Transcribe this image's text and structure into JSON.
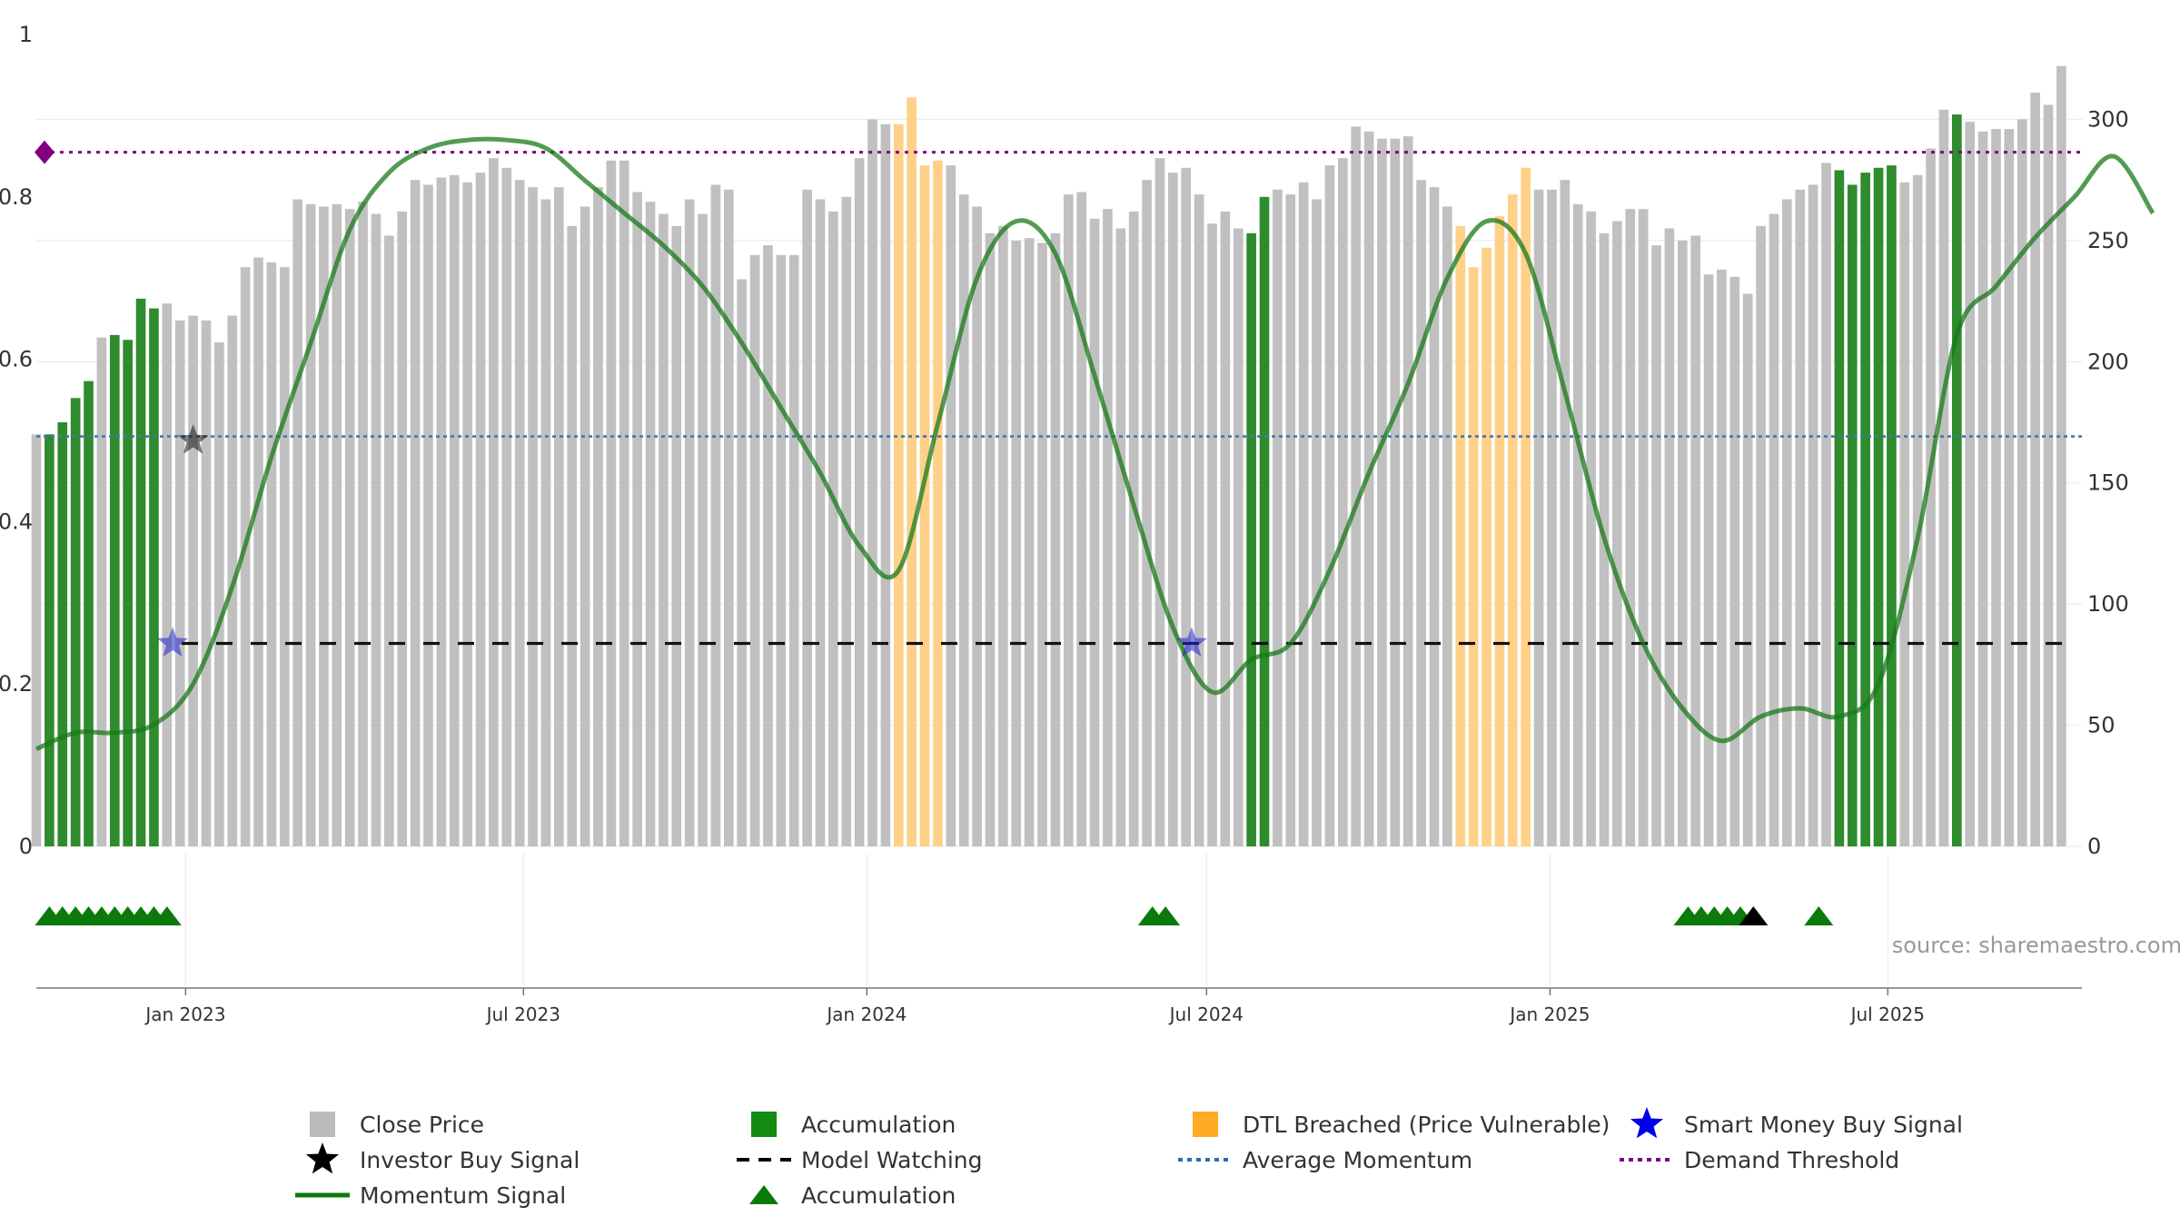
{
  "chart_data": {
    "type": "bar",
    "source": "source: sharemaestro.com",
    "x_ticks": [
      "Jan 2023",
      "Jul 2023",
      "Jan 2024",
      "Jul 2024",
      "Jan 2025",
      "Jul 2025"
    ],
    "x_tick_dates": [
      "2023-01-01",
      "2023-07-01",
      "2024-01-01",
      "2024-07-01",
      "2025-01-01",
      "2025-07-01"
    ],
    "x_range": [
      "2022-10-13",
      "2025-10-13"
    ],
    "left_axis": {
      "ylim": [
        0,
        1
      ],
      "ticks": [
        "0",
        "0.2",
        "0.4",
        "0.6",
        "0.8",
        "1"
      ]
    },
    "right_axis": {
      "ylim": [
        0,
        335
      ],
      "ticks": [
        "0",
        "50",
        "100",
        "150",
        "200",
        "250",
        "300"
      ]
    },
    "grid": true,
    "colors": {
      "close": "#c0c0c0",
      "accumulation": "#2e8b2e",
      "dtl": "#ffd088",
      "momentum": "#1a7a1a",
      "average": "#4477aa",
      "threshold": "#800080",
      "smart_money": "#2222cc",
      "investor": "#111111",
      "triangle": "#0a7a0a"
    },
    "close_price": {
      "name": "Close Price",
      "start_date": "2022-10-13",
      "interval_days": 7,
      "status_codes": "g = grey (normal), a = green (accumulation), d = amber (DTL breached)",
      "values": [
        170,
        170,
        175,
        185,
        192,
        210,
        211,
        209,
        226,
        222,
        224,
        217,
        219,
        217,
        208,
        219,
        239,
        243,
        241,
        239,
        267,
        265,
        264,
        265,
        263,
        266,
        261,
        252,
        262,
        275,
        273,
        276,
        277,
        274,
        278,
        284,
        280,
        275,
        272,
        267,
        272,
        256,
        264,
        272,
        283,
        283,
        270,
        266,
        261,
        256,
        267,
        261,
        273,
        271,
        234,
        244,
        248,
        244,
        244,
        271,
        267,
        262,
        268,
        284,
        300,
        298,
        298,
        309,
        281,
        283,
        281,
        269,
        264,
        253,
        256,
        250,
        251,
        249,
        253,
        269,
        270,
        259,
        263,
        255,
        262,
        275,
        284,
        278,
        280,
        269,
        257,
        262,
        255,
        253,
        268,
        271,
        269,
        274,
        267,
        281,
        284,
        297,
        295,
        292,
        292,
        293,
        275,
        272,
        264,
        256,
        239,
        247,
        260,
        269,
        280,
        271,
        271,
        275,
        265,
        262,
        253,
        258,
        263,
        263,
        248,
        255,
        250,
        252,
        236,
        238,
        235,
        228,
        256,
        261,
        267,
        271,
        273,
        282,
        279,
        273,
        278,
        280,
        281,
        274,
        277,
        288,
        304,
        302,
        299,
        295,
        296,
        296,
        300,
        311,
        306,
        322
      ],
      "status": "gaaaagaaaaggggggggggggggggggggggggggggggggggggggggggggggggggggggggddddgggggggggggggggggggggggaaggggggggggggggddddddgggggggggggggggggggggggaaaaaggggaggggggggggggggggdddddddddd"
    },
    "momentum": {
      "name": "Momentum Signal",
      "points": [
        [
          0,
          0.12
        ],
        [
          3,
          0.14
        ],
        [
          6,
          0.14
        ],
        [
          9,
          0.15
        ],
        [
          12,
          0.2
        ],
        [
          15,
          0.32
        ],
        [
          18,
          0.48
        ],
        [
          21,
          0.62
        ],
        [
          24,
          0.76
        ],
        [
          27,
          0.83
        ],
        [
          30,
          0.86
        ],
        [
          33,
          0.87
        ],
        [
          36,
          0.87
        ],
        [
          39,
          0.86
        ],
        [
          42,
          0.82
        ],
        [
          45,
          0.78
        ],
        [
          48,
          0.74
        ],
        [
          51,
          0.69
        ],
        [
          54,
          0.62
        ],
        [
          57,
          0.54
        ],
        [
          60,
          0.46
        ],
        [
          63,
          0.37
        ],
        [
          66,
          0.34
        ],
        [
          69,
          0.52
        ],
        [
          72,
          0.7
        ],
        [
          75,
          0.77
        ],
        [
          78,
          0.73
        ],
        [
          81,
          0.58
        ],
        [
          84,
          0.42
        ],
        [
          87,
          0.27
        ],
        [
          90,
          0.19
        ],
        [
          93,
          0.23
        ],
        [
          96,
          0.25
        ],
        [
          99,
          0.34
        ],
        [
          102,
          0.46
        ],
        [
          105,
          0.57
        ],
        [
          108,
          0.7
        ],
        [
          111,
          0.77
        ],
        [
          114,
          0.73
        ],
        [
          117,
          0.56
        ],
        [
          120,
          0.38
        ],
        [
          123,
          0.25
        ],
        [
          126,
          0.17
        ],
        [
          129,
          0.13
        ],
        [
          132,
          0.16
        ],
        [
          135,
          0.17
        ],
        [
          138,
          0.16
        ],
        [
          141,
          0.2
        ],
        [
          144,
          0.38
        ],
        [
          147,
          0.63
        ],
        [
          150,
          0.69
        ],
        [
          153,
          0.75
        ],
        [
          156,
          0.8
        ],
        [
          159,
          0.85
        ],
        [
          162,
          0.78
        ]
      ]
    },
    "model_watching": {
      "name": "Model Watching",
      "value": 0.25
    },
    "average_momentum": {
      "name": "Average Momentum",
      "value": 0.505
    },
    "demand_threshold": {
      "name": "Demand Threshold",
      "value": 0.855
    },
    "smart_money_signals": [
      {
        "date": "2022-12-25",
        "value": 0.25
      },
      {
        "date": "2024-06-23",
        "value": 0.25
      }
    ],
    "investor_signals": [
      {
        "date": "2023-01-05",
        "value": 0.5
      }
    ],
    "accumulation_triangles": [
      "2022-10-20",
      "2022-10-27",
      "2022-11-03",
      "2022-11-10",
      "2022-11-17",
      "2022-11-24",
      "2022-12-01",
      "2022-12-08",
      "2022-12-15",
      "2022-12-22",
      "2024-06-02",
      "2024-06-09",
      "2025-03-16",
      "2025-03-23",
      "2025-03-30",
      "2025-04-06",
      "2025-04-13",
      "2025-05-25"
    ],
    "investor_triangles": [
      "2025-04-20"
    ],
    "legend": [
      {
        "label": "Close Price",
        "symbol": "square",
        "color": "#bbbbbb"
      },
      {
        "label": "Accumulation",
        "symbol": "square",
        "color": "#138a13"
      },
      {
        "label": "DTL Breached (Price Vulnerable)",
        "symbol": "square",
        "color": "#ffab24"
      },
      {
        "label": "Smart Money Buy Signal",
        "symbol": "star",
        "color": "#0000ee"
      },
      {
        "label": "Investor Buy Signal",
        "symbol": "star",
        "color": "#000000"
      },
      {
        "label": "Model Watching",
        "symbol": "dash",
        "color": "#000000"
      },
      {
        "label": "Average Momentum",
        "symbol": "dot",
        "color": "#2c6fa8"
      },
      {
        "label": "Demand Threshold",
        "symbol": "dot",
        "color": "#800080"
      },
      {
        "label": "Momentum Signal",
        "symbol": "line",
        "color": "#0a7a0a"
      },
      {
        "label": "Accumulation",
        "symbol": "triangle",
        "color": "#0a7a0a"
      }
    ]
  }
}
